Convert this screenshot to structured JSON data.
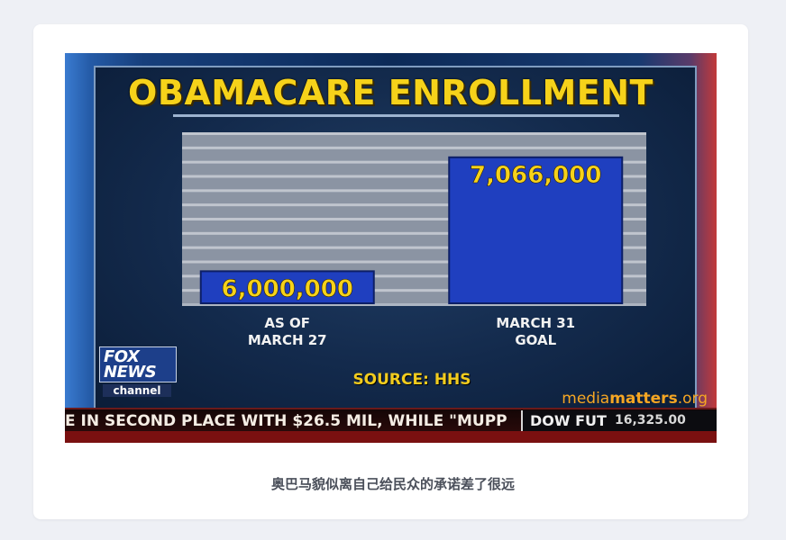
{
  "caption": "奥巴马貌似离自己给民众的承诺差了很远",
  "colors": {
    "title": "#f6d21a",
    "bar": "#1f3fbf",
    "bar_text": "#f6d21a",
    "axis_label": "#f2f2f2",
    "watermark": "#f5a623"
  },
  "chart_data": {
    "type": "bar",
    "title": "OBAMACARE ENROLLMENT",
    "categories": [
      "AS OF\nMARCH 27",
      "MARCH 31\nGOAL"
    ],
    "values": [
      6000000,
      7066000
    ],
    "data_labels": [
      "6,000,000",
      "7,066,000"
    ],
    "ylim": [
      5700000,
      7300000
    ],
    "grid": true,
    "source": "SOURCE: HHS"
  },
  "broadcast": {
    "logo_text": "FOX NEWS",
    "logo_sub": "channel",
    "ticker": "E IN SECOND PLACE WITH $26.5 MIL, WHILE \"MUPP",
    "market_label": "DOW FUT",
    "market_value": "16,325.00",
    "watermark_pre": "media",
    "watermark_bold": "matters",
    "watermark_post": ".org"
  }
}
